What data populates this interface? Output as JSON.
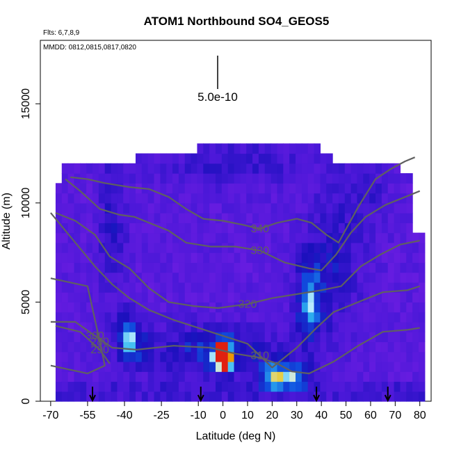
{
  "chart_data": {
    "type": "heatmap",
    "title": "ATOM1 Northbound SO4_GEOS5",
    "flights_note": "Flts: 6,7,8,9",
    "dates_note": "MMDD: 0812,0815,0817,0820",
    "xlabel": "Latitude (deg N)",
    "ylabel": "Altitude (m)",
    "xlim": [
      -70,
      80
    ],
    "ylim": [
      0,
      18000
    ],
    "x_ticks": [
      -70,
      -55,
      -40,
      -25,
      -10,
      0,
      10,
      20,
      30,
      40,
      50,
      60,
      70,
      80
    ],
    "y_ticks": [
      0,
      5000,
      10000,
      15000
    ],
    "scale_bar_label": "5.0e-10",
    "colors": {
      "background_field": "#7a1fe0",
      "low": "#1a10b8",
      "high": "#e03010",
      "contour": "#606060"
    },
    "hotspots": [
      {
        "lat": 0,
        "alt": 2300,
        "level": "very high"
      },
      {
        "lat": 25,
        "alt": 1300,
        "level": "moderate"
      },
      {
        "lat": 35,
        "alt": 5000,
        "level": "moderate"
      },
      {
        "lat": -38,
        "alt": 3200,
        "level": "low"
      }
    ],
    "profile_markers_lat": [
      -53,
      -9,
      38,
      67
    ],
    "contours": [
      {
        "label": "280",
        "points": [
          [
            -70,
            6200
          ],
          [
            -55,
            5800
          ],
          [
            -50,
            3000
          ],
          [
            -48,
            1800
          ],
          [
            -55,
            1400
          ],
          [
            -70,
            1800
          ]
        ]
      },
      {
        "label": "290",
        "points": [
          [
            -68,
            3800
          ],
          [
            -58,
            3500
          ],
          [
            -50,
            2600
          ],
          [
            -46,
            1900
          ]
        ]
      },
      {
        "label": "300",
        "points": [
          [
            -70,
            4000
          ],
          [
            -60,
            4000
          ],
          [
            -52,
            3300
          ],
          [
            -45,
            2700
          ],
          [
            -35,
            2600
          ],
          [
            -20,
            2800
          ],
          [
            -5,
            2700
          ],
          [
            5,
            2400
          ],
          [
            15,
            2200
          ],
          [
            22,
            1900
          ],
          [
            28,
            1500
          ],
          [
            35,
            1400
          ],
          [
            45,
            2000
          ],
          [
            55,
            2800
          ],
          [
            65,
            3500
          ],
          [
            75,
            3600
          ],
          [
            80,
            3700
          ]
        ]
      },
      {
        "label": "310",
        "points": [
          [
            -70,
            9500
          ],
          [
            -60,
            8000
          ],
          [
            -52,
            6800
          ],
          [
            -45,
            5900
          ],
          [
            -38,
            5200
          ],
          [
            -30,
            4600
          ],
          [
            -20,
            4100
          ],
          [
            -10,
            3700
          ],
          [
            0,
            3300
          ],
          [
            10,
            2900
          ],
          [
            15,
            2300
          ],
          [
            20,
            1700
          ],
          [
            26,
            2300
          ],
          [
            30,
            2700
          ],
          [
            38,
            3700
          ],
          [
            45,
            4500
          ],
          [
            55,
            5000
          ],
          [
            65,
            5500
          ],
          [
            75,
            5600
          ],
          [
            80,
            5800
          ]
        ]
      },
      {
        "label": "320",
        "points": [
          [
            -68,
            9500
          ],
          [
            -60,
            9100
          ],
          [
            -52,
            8400
          ],
          [
            -46,
            7300
          ],
          [
            -38,
            6700
          ],
          [
            -30,
            5700
          ],
          [
            -22,
            5000
          ],
          [
            -12,
            4800
          ],
          [
            -2,
            4700
          ],
          [
            10,
            4900
          ],
          [
            20,
            5200
          ],
          [
            30,
            5400
          ],
          [
            40,
            5600
          ],
          [
            48,
            5800
          ],
          [
            56,
            6800
          ],
          [
            64,
            7400
          ],
          [
            72,
            7900
          ],
          [
            80,
            8100
          ]
        ]
      },
      {
        "label": "330",
        "points": [
          [
            -64,
            11200
          ],
          [
            -58,
            10600
          ],
          [
            -50,
            9700
          ],
          [
            -42,
            9400
          ],
          [
            -36,
            9300
          ],
          [
            -30,
            9000
          ],
          [
            -22,
            8600
          ],
          [
            -15,
            8000
          ],
          [
            -5,
            7800
          ],
          [
            5,
            7800
          ],
          [
            15,
            7600
          ],
          [
            25,
            7000
          ],
          [
            35,
            6700
          ],
          [
            40,
            6600
          ],
          [
            46,
            7400
          ],
          [
            52,
            8500
          ],
          [
            58,
            9300
          ],
          [
            66,
            9900
          ],
          [
            74,
            10300
          ],
          [
            80,
            10600
          ]
        ]
      },
      {
        "label": "340",
        "points": [
          [
            -62,
            11300
          ],
          [
            -55,
            11200
          ],
          [
            -48,
            11000
          ],
          [
            -38,
            10800
          ],
          [
            -30,
            10700
          ],
          [
            -22,
            10300
          ],
          [
            -15,
            9700
          ],
          [
            -8,
            9200
          ],
          [
            0,
            9100
          ],
          [
            8,
            8900
          ],
          [
            15,
            8700
          ],
          [
            22,
            9000
          ],
          [
            30,
            9200
          ],
          [
            36,
            9000
          ],
          [
            42,
            8400
          ],
          [
            47,
            8000
          ],
          [
            55,
            9800
          ],
          [
            62,
            11200
          ],
          [
            68,
            11700
          ],
          [
            74,
            12100
          ],
          [
            78,
            12300
          ]
        ]
      }
    ]
  }
}
